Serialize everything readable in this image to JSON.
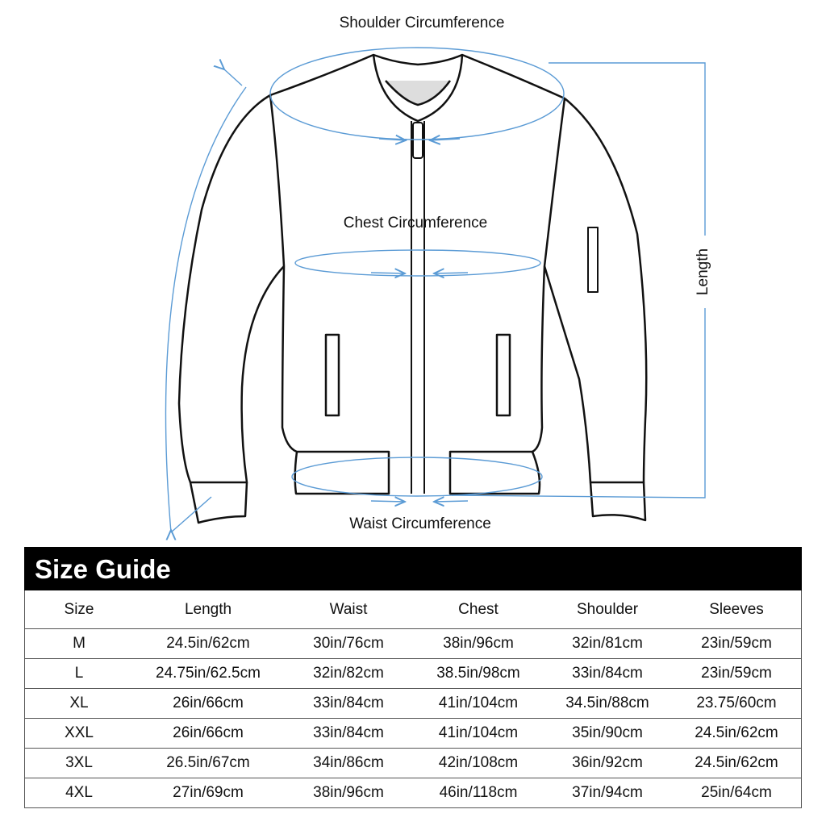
{
  "diagram": {
    "labels": {
      "shoulder": "Shoulder Circumference",
      "chest": "Chest Circumference",
      "waist": "Waist Circumference",
      "length": "Length"
    },
    "accent_color": "#5b9bd5"
  },
  "size_guide": {
    "title": "Size Guide",
    "columns": [
      "Size",
      "Length",
      "Waist",
      "Chest",
      "Shoulder",
      "Sleeves"
    ],
    "rows": [
      [
        "M",
        "24.5in/62cm",
        "30in/76cm",
        "38in/96cm",
        "32in/81cm",
        "23in/59cm"
      ],
      [
        "L",
        "24.75in/62.5cm",
        "32in/82cm",
        "38.5in/98cm",
        "33in/84cm",
        "23in/59cm"
      ],
      [
        "XL",
        "26in/66cm",
        "33in/84cm",
        "41in/104cm",
        "34.5in/88cm",
        "23.75/60cm"
      ],
      [
        "XXL",
        "26in/66cm",
        "33in/84cm",
        "41in/104cm",
        "35in/90cm",
        "24.5in/62cm"
      ],
      [
        "3XL",
        "26.5in/67cm",
        "34in/86cm",
        "42in/108cm",
        "36in/92cm",
        "24.5in/62cm"
      ],
      [
        "4XL",
        "27in/69cm",
        "38in/96cm",
        "46in/118cm",
        "37in/94cm",
        "25in/64cm"
      ]
    ]
  }
}
